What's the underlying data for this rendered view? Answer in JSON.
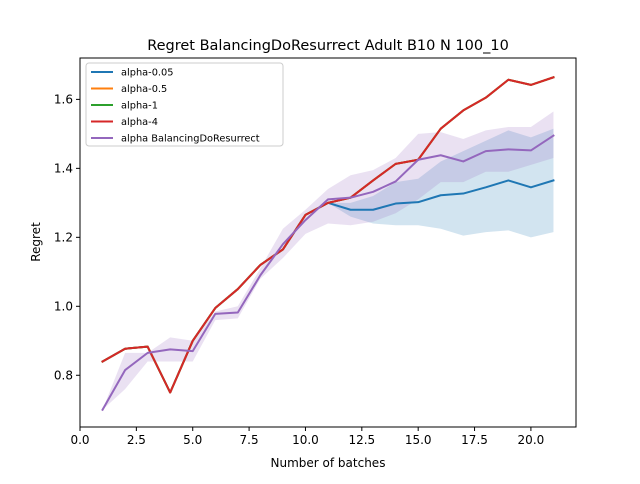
{
  "chart_data": {
    "type": "line",
    "title": "Regret BalancingDoResurrect Adult B10 N 100_10",
    "xlabel": "Number of batches",
    "ylabel": "Regret",
    "xlim": [
      0.0,
      22.0
    ],
    "ylim": [
      0.65,
      1.72
    ],
    "xticks": [
      0.0,
      2.5,
      5.0,
      7.5,
      10.0,
      12.5,
      15.0,
      17.5,
      20.0
    ],
    "xtick_labels": [
      "0.0",
      "2.5",
      "5.0",
      "7.5",
      "10.0",
      "12.5",
      "15.0",
      "17.5",
      "20.0"
    ],
    "yticks": [
      0.8,
      1.0,
      1.2,
      1.4,
      1.6
    ],
    "ytick_labels": [
      "0.8",
      "1.0",
      "1.2",
      "1.4",
      "1.6"
    ],
    "grid": false,
    "legend_position": "top-left",
    "x": [
      1,
      2,
      3,
      4,
      5,
      6,
      7,
      8,
      9,
      10,
      11,
      12,
      13,
      14,
      15,
      16,
      17,
      18,
      19,
      20,
      21
    ],
    "series": [
      {
        "name": "alpha-0.05",
        "color": "#1f77b4",
        "values": [
          0.84,
          0.877,
          0.883,
          0.75,
          0.9,
          0.995,
          1.05,
          1.12,
          1.165,
          1.265,
          1.3,
          1.28,
          1.28,
          1.298,
          1.302,
          1.322,
          1.327,
          1.345,
          1.365,
          1.345,
          1.365
        ],
        "band_lower": [
          0.84,
          0.877,
          0.883,
          0.75,
          0.9,
          0.995,
          1.05,
          1.12,
          1.165,
          1.265,
          1.3,
          1.26,
          1.24,
          1.235,
          1.235,
          1.225,
          1.205,
          1.215,
          1.22,
          1.2,
          1.215
        ],
        "band_upper": [
          0.84,
          0.877,
          0.883,
          0.75,
          0.9,
          0.995,
          1.05,
          1.12,
          1.165,
          1.265,
          1.3,
          1.3,
          1.32,
          1.36,
          1.37,
          1.42,
          1.45,
          1.48,
          1.51,
          1.49,
          1.515
        ]
      },
      {
        "name": "alpha-0.5",
        "color": "#ff7f0e",
        "values": [
          0.84,
          0.877,
          0.883,
          0.75,
          0.9,
          0.995,
          1.05,
          1.12,
          1.165,
          1.265,
          1.3,
          1.315,
          1.365,
          1.413,
          1.425,
          1.515,
          1.568,
          1.605,
          1.657,
          1.642,
          1.664
        ]
      },
      {
        "name": "alpha-1",
        "color": "#2ca02c",
        "values": [
          0.84,
          0.877,
          0.883,
          0.75,
          0.9,
          0.995,
          1.05,
          1.12,
          1.165,
          1.265,
          1.3,
          1.315,
          1.365,
          1.413,
          1.425,
          1.515,
          1.568,
          1.605,
          1.657,
          1.642,
          1.664
        ]
      },
      {
        "name": "alpha-4",
        "color": "#d62728",
        "values": [
          0.84,
          0.877,
          0.883,
          0.75,
          0.9,
          0.995,
          1.05,
          1.12,
          1.165,
          1.265,
          1.3,
          1.315,
          1.365,
          1.413,
          1.425,
          1.515,
          1.568,
          1.605,
          1.657,
          1.642,
          1.664
        ]
      },
      {
        "name": "alpha BalancingDoResurrect",
        "color": "#9467bd",
        "values": [
          0.7,
          0.815,
          0.865,
          0.875,
          0.87,
          0.978,
          0.982,
          1.09,
          1.18,
          1.25,
          1.31,
          1.315,
          1.332,
          1.362,
          1.425,
          1.438,
          1.42,
          1.45,
          1.455,
          1.452,
          1.495
        ],
        "band_lower": [
          0.7,
          0.76,
          0.84,
          0.84,
          0.84,
          0.96,
          0.965,
          1.08,
          1.14,
          1.21,
          1.24,
          1.235,
          1.245,
          1.27,
          1.31,
          1.36,
          1.36,
          1.39,
          1.39,
          1.41,
          1.43
        ],
        "band_upper": [
          0.7,
          0.865,
          0.865,
          0.91,
          0.9,
          0.985,
          1.0,
          1.11,
          1.225,
          1.28,
          1.34,
          1.38,
          1.395,
          1.43,
          1.5,
          1.505,
          1.485,
          1.51,
          1.52,
          1.52,
          1.565
        ]
      }
    ]
  }
}
